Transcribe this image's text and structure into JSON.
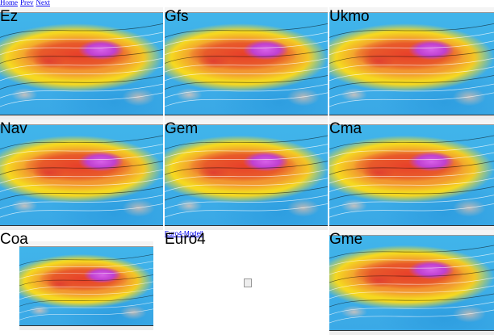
{
  "nav": {
    "links": [
      "Home",
      "Prev",
      "Next"
    ]
  },
  "models": [
    {
      "label": "Ez"
    },
    {
      "label": "Gfs"
    },
    {
      "label": "Ukmo"
    },
    {
      "label": "Nav"
    },
    {
      "label": "Gem"
    },
    {
      "label": "Cma"
    },
    {
      "label": "Coa"
    },
    {
      "label": "Euro4"
    },
    {
      "label": "Gme"
    }
  ],
  "euro4_alt": "Euro4-Modell"
}
